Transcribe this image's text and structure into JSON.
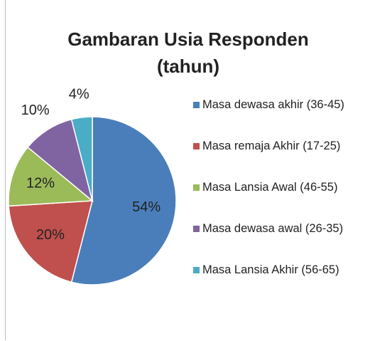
{
  "chart_data": {
    "type": "pie",
    "title": "Gambaran Usia Responden (tahun)",
    "categories": [
      "Masa dewasa akhir (36-45)",
      "Masa remaja Akhir (17-25)",
      "Masa Lansia Awal (46-55)",
      "Masa dewasa awal  (26-35)",
      "Masa Lansia Akhir (56-65)"
    ],
    "values": [
      54,
      20,
      12,
      10,
      4
    ],
    "value_labels": [
      "54%",
      "20%",
      "12%",
      "10%",
      "4%"
    ],
    "colors": [
      "#4a7ebb",
      "#c0504d",
      "#9bbb59",
      "#8064a2",
      "#4bacc6"
    ],
    "legend": "right"
  }
}
